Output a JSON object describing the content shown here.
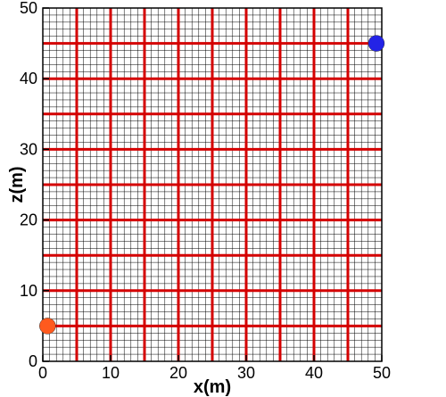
{
  "chart_data": {
    "type": "scatter",
    "xlabel": "x(m)",
    "ylabel": "z(m)",
    "xlim": [
      0,
      50
    ],
    "ylim": [
      0,
      50
    ],
    "x_ticks": [
      0,
      10,
      20,
      30,
      40,
      50
    ],
    "y_ticks": [
      0,
      10,
      20,
      30,
      40,
      50
    ],
    "x_tick_labels": [
      "0",
      "10",
      "20",
      "30",
      "40",
      "50"
    ],
    "y_tick_labels": [
      "0",
      "10",
      "20",
      "30",
      "40",
      "50"
    ],
    "fine_grid_spacing": 1,
    "coarse_grid_spacing": 5,
    "fine_grid_color": "#000000",
    "coarse_grid_color": "#d40000",
    "points": [
      {
        "x": 0.7,
        "y": 5,
        "color": "#ff5a1e"
      },
      {
        "x": 49.2,
        "y": 45,
        "color": "#2323e6"
      }
    ]
  }
}
